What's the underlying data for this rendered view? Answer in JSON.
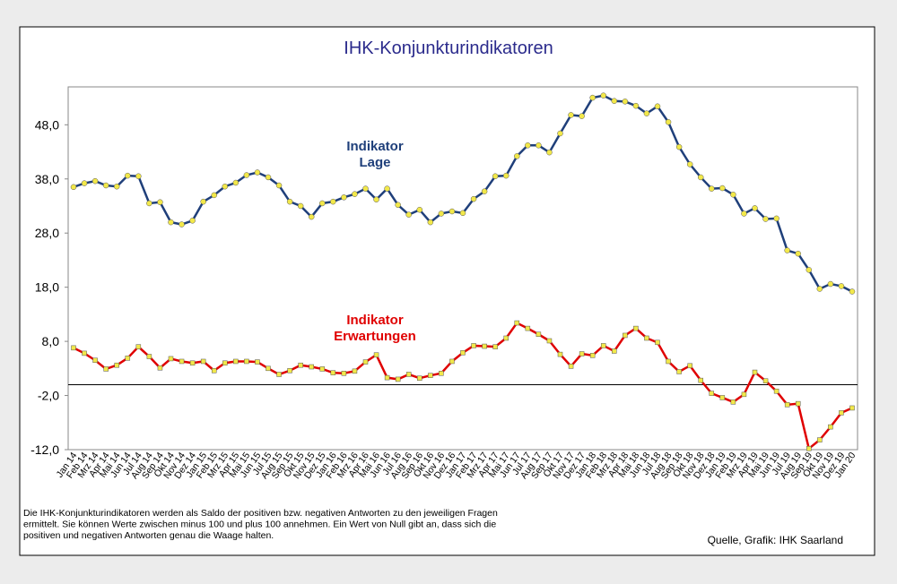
{
  "chart_data": {
    "type": "line",
    "title": "IHK-Konjunkturindikatoren",
    "categories": [
      "Jan 14",
      "Feb 14",
      "Mrz 14",
      "Apr 14",
      "Mai 14",
      "Jun 14",
      "Jul 14",
      "Aug 14",
      "Sep 14",
      "Okt 14",
      "Nov 14",
      "Dez 14",
      "Jan 15",
      "Feb 15",
      "Mrz 15",
      "Apr 15",
      "Mai 15",
      "Jun 15",
      "Jul 15",
      "Aug 15",
      "Sep 15",
      "Okt 15",
      "Nov 15",
      "Dez 15",
      "Jan 16",
      "Feb 16",
      "Mrz 16",
      "Apr 16",
      "Mai 16",
      "Jun 16",
      "Jul 16",
      "Aug 16",
      "Sep 16",
      "Okt 16",
      "Nov 16",
      "Dez 16",
      "Jan 17",
      "Feb 17",
      "Mrz 17",
      "Apr 17",
      "Mai 17",
      "Jun 17",
      "Jul 17",
      "Aug 17",
      "Sep 17",
      "Okt 17",
      "Nov 17",
      "Dez 17",
      "Jan 18",
      "Feb 18",
      "Mrz 18",
      "Apr 18",
      "Mai 18",
      "Jun 18",
      "Jul 18",
      "Aug 18",
      "Sep 18",
      "Okt 18",
      "Nov 18",
      "Dez 18",
      "Jan 19",
      "Feb 19",
      "Mrz 19",
      "Apr 19",
      "Mai 19",
      "Jun 19",
      "Jul 19",
      "Aug 19",
      "Sep 19",
      "Okt 19",
      "Nov 19",
      "Dez 19",
      "Jan 20"
    ],
    "series": [
      {
        "name": [
          "Indikator",
          "Lage"
        ],
        "color": "#1f3f7a",
        "marker": "circle",
        "marker_color": "#f2e84a",
        "values": [
          36.5,
          37.2,
          37.6,
          36.8,
          36.6,
          38.6,
          38.5,
          33.5,
          33.7,
          30.0,
          29.6,
          30.3,
          33.8,
          35.0,
          36.6,
          37.3,
          38.7,
          39.2,
          38.3,
          36.8,
          33.8,
          33.0,
          31.0,
          33.5,
          33.8,
          34.6,
          35.2,
          36.2,
          34.2,
          36.2,
          33.2,
          31.4,
          32.3,
          30.0,
          31.6,
          32.0,
          31.7,
          34.3,
          35.7,
          38.5,
          38.6,
          42.2,
          44.2,
          44.2,
          42.9,
          46.4,
          49.8,
          49.6,
          53.0,
          53.4,
          52.4,
          52.3,
          51.5,
          50.1,
          51.4,
          48.5,
          43.9,
          40.7,
          38.3,
          36.2,
          36.3,
          35.1,
          31.6,
          32.6,
          30.6,
          30.7,
          24.8,
          24.2,
          21.2,
          17.7,
          18.6,
          18.2,
          17.2
        ]
      },
      {
        "name": [
          "Indikator",
          "Erwartungen"
        ],
        "color": "#e00000",
        "marker": "square",
        "marker_color": "#f2e84a",
        "values": [
          6.8,
          5.8,
          4.5,
          2.9,
          3.6,
          4.9,
          7.0,
          5.2,
          3.1,
          4.8,
          4.3,
          4.0,
          4.3,
          2.6,
          4.0,
          4.3,
          4.3,
          4.2,
          3.0,
          1.9,
          2.6,
          3.6,
          3.3,
          2.9,
          2.2,
          2.1,
          2.5,
          4.2,
          5.5,
          1.3,
          1.0,
          1.9,
          1.2,
          1.7,
          2.1,
          4.3,
          5.9,
          7.2,
          7.1,
          7.0,
          8.6,
          11.4,
          10.4,
          9.3,
          8.1,
          5.6,
          3.4,
          5.7,
          5.4,
          7.2,
          6.2,
          9.1,
          10.4,
          8.6,
          7.8,
          4.3,
          2.4,
          3.5,
          0.8,
          -1.6,
          -2.4,
          -3.2,
          -1.8,
          2.3,
          0.7,
          -1.2,
          -3.7,
          -3.5,
          -11.8,
          -10.2,
          -7.8,
          -5.2,
          -4.3
        ]
      }
    ],
    "ylim": [
      -12,
      55
    ],
    "yticks": [
      {
        "value": -12,
        "label": "-12,0"
      },
      {
        "value": -2,
        "label": "-2,0"
      },
      {
        "value": 8,
        "label": "8,0"
      },
      {
        "value": 18,
        "label": "18,0"
      },
      {
        "value": 28,
        "label": "28,0"
      },
      {
        "value": 38,
        "label": "38,0"
      },
      {
        "value": 48,
        "label": "48,0"
      }
    ],
    "reference_line": 0,
    "grid": false,
    "footnote": [
      "Die IHK-Konjunkturindikatoren werden als Saldo der positiven bzw. negativen Antworten zu den jeweiligen Fragen",
      "ermittelt. Sie können Werte zwischen minus 100 und plus 100 annehmen. Ein Wert von Null gibt an, dass sich die",
      "positiven und negativen Antworten genau die Waage halten."
    ],
    "source": "Quelle, Grafik: IHK Saarland"
  }
}
